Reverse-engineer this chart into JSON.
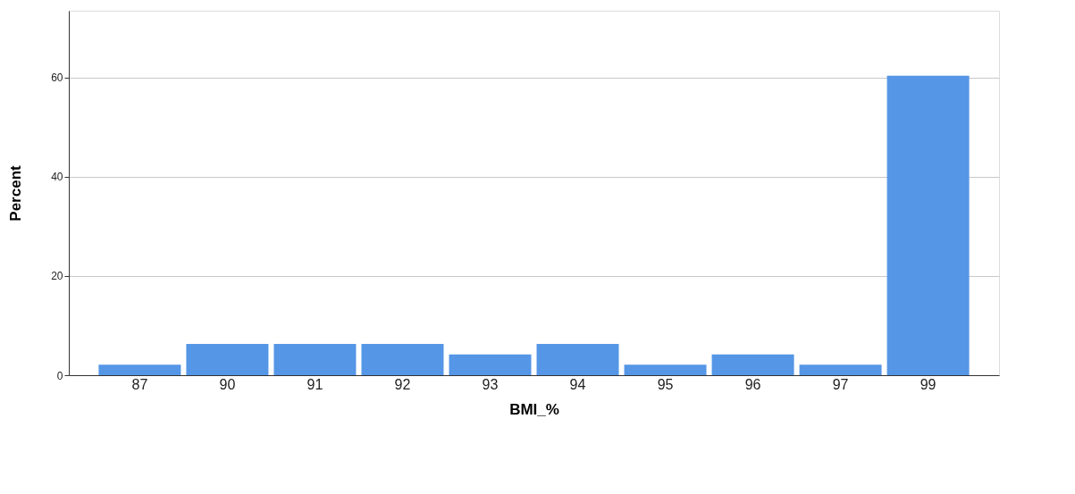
{
  "chart_data": {
    "type": "bar",
    "xlabel": "BMI_%",
    "ylabel": "Percent",
    "categories": [
      "87",
      "90",
      "91",
      "92",
      "93",
      "94",
      "95",
      "96",
      "97",
      "99"
    ],
    "values": [
      2.1,
      6.3,
      6.3,
      6.3,
      4.2,
      6.3,
      2.1,
      4.2,
      2.1,
      60.4
    ],
    "color": "#5596e6",
    "ylim": [
      0,
      73.5
    ],
    "yticks": [
      0,
      20,
      40,
      60
    ],
    "grid": "y"
  }
}
